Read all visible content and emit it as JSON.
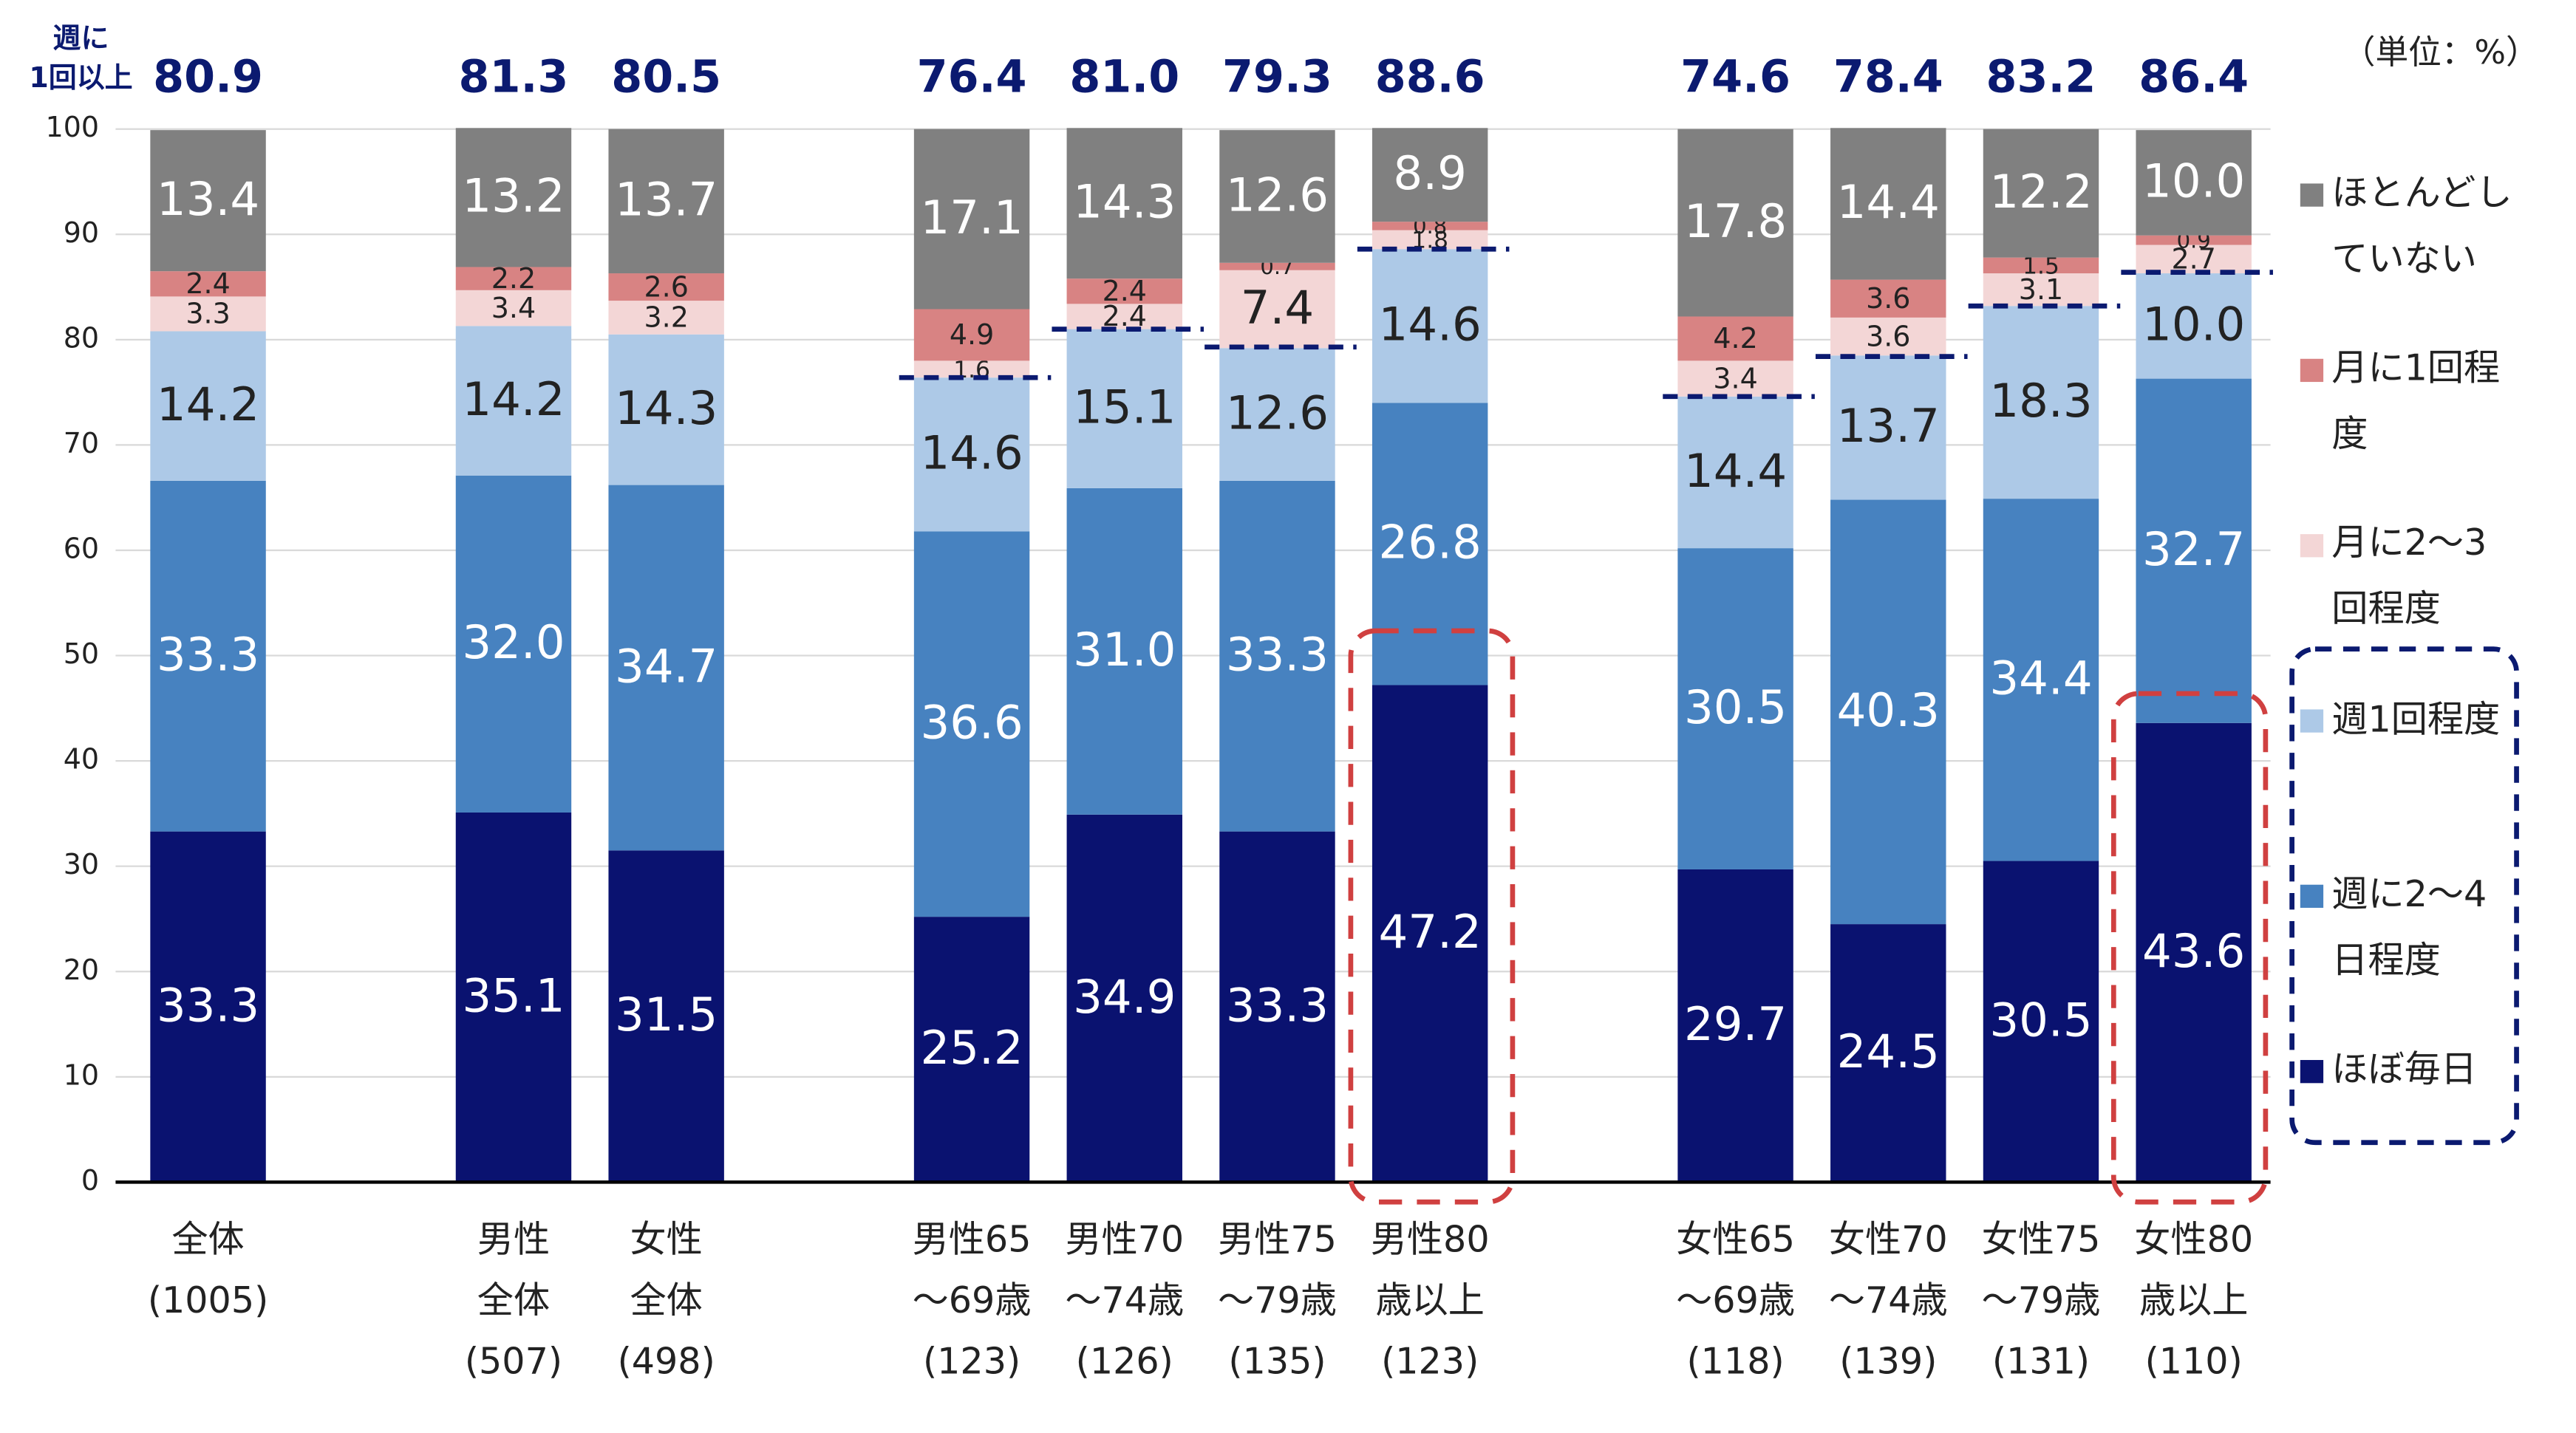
{
  "chart_data": {
    "type": "stacked_bar",
    "unit_note": "（単位：%）",
    "categories": [
      [
        "全体",
        "(1005)"
      ],
      [
        "男性",
        "全体",
        "(507)"
      ],
      [
        "女性",
        "全体",
        "(498)"
      ],
      [
        "男性65",
        "～69歳",
        "(123)"
      ],
      [
        "男性70",
        "～74歳",
        "(126)"
      ],
      [
        "男性75",
        "～79歳",
        "(135)"
      ],
      [
        "男性80",
        "歳以上",
        "(123)"
      ],
      [
        "女性65",
        "～69歳",
        "(118)"
      ],
      [
        "女性70",
        "～74歳",
        "(139)"
      ],
      [
        "女性75",
        "～79歳",
        "(131)"
      ],
      [
        "女性80",
        "歳以上",
        "(110)"
      ]
    ],
    "series": [
      {
        "name": "ほぼ毎日",
        "color": "#0a1270",
        "values": [
          33.3,
          35.1,
          31.5,
          25.2,
          34.9,
          33.3,
          47.2,
          29.7,
          24.5,
          30.5,
          43.6
        ],
        "value_labels": [
          "33.3",
          "35.1",
          "31.5",
          "25.2",
          "34.9",
          "33.3",
          "47.2",
          "29.7",
          "24.5",
          "30.5",
          "43.6"
        ]
      },
      {
        "name": "週に2～4日程度",
        "color": "#4782c0",
        "values": [
          33.3,
          32.0,
          34.7,
          36.6,
          31.0,
          33.3,
          26.8,
          30.5,
          40.3,
          34.4,
          32.7
        ],
        "value_labels": [
          "33.3",
          "32.0",
          "34.7",
          "36.6",
          "31.0",
          "33.3",
          "26.8",
          "30.5",
          "40.3",
          "34.4",
          "32.7"
        ]
      },
      {
        "name": "週1回程度",
        "color": "#adc9e7",
        "values": [
          14.2,
          14.2,
          14.3,
          14.6,
          15.1,
          12.6,
          14.6,
          14.4,
          13.7,
          18.3,
          10.0
        ],
        "value_labels": [
          "14.2",
          "14.2",
          "14.3",
          "14.6",
          "15.1",
          "12.6",
          "14.6",
          "14.4",
          "13.7",
          "18.3",
          "10.0"
        ]
      },
      {
        "name": "月に2～3回程度",
        "color": "#f3d6d6",
        "values": [
          3.3,
          3.4,
          3.2,
          1.6,
          2.4,
          7.4,
          1.8,
          3.4,
          3.6,
          3.1,
          2.7
        ],
        "value_labels": [
          "3.3",
          "3.4",
          "3.2",
          "1.6",
          "2.4",
          "7.4",
          "1.8",
          "3.4",
          "3.6",
          "3.1",
          "2.7"
        ]
      },
      {
        "name": "月に1回程度",
        "color": "#d88383",
        "values": [
          2.4,
          2.2,
          2.6,
          4.9,
          2.4,
          0.7,
          0.8,
          4.2,
          3.6,
          1.5,
          0.9
        ],
        "value_labels": [
          "2.4",
          "2.2",
          "2.6",
          "4.9",
          "2.4",
          "0.7",
          "0.8",
          "4.2",
          "3.6",
          "1.5",
          "0.9"
        ]
      },
      {
        "name": "ほとんどしていない",
        "color": "#808080",
        "values": [
          13.4,
          13.2,
          13.7,
          17.1,
          14.3,
          12.6,
          8.9,
          17.8,
          14.4,
          12.2,
          10.0
        ],
        "value_labels": [
          "13.4",
          "13.2",
          "13.7",
          "17.1",
          "14.3",
          "12.6",
          "8.9",
          "17.8",
          "14.4",
          "12.2",
          "10.0"
        ]
      }
    ],
    "top_labels": {
      "name": [
        "週に",
        "1回以上"
      ],
      "color": "#0b1a70",
      "values": [
        80.9,
        81.3,
        80.5,
        76.4,
        81.0,
        79.3,
        88.6,
        74.6,
        78.4,
        83.2,
        86.4
      ],
      "value_labels": [
        "80.9",
        "81.3",
        "80.5",
        "76.4",
        "81.0",
        "79.3",
        "88.6",
        "74.6",
        "78.4",
        "83.2",
        "86.4"
      ]
    },
    "ylim": [
      0,
      100
    ],
    "yticks": [
      0,
      10,
      20,
      30,
      40,
      50,
      60,
      70,
      80,
      90,
      100
    ],
    "grid": true,
    "legend": "right"
  }
}
